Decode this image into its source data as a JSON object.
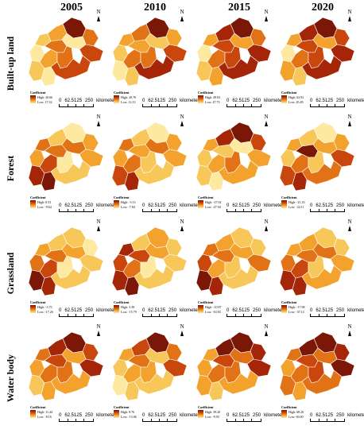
{
  "years": [
    "2005",
    "2010",
    "2015",
    "2020"
  ],
  "rows": [
    {
      "label": "Built-up land",
      "panels": [
        {
          "high": "High: 20.66",
          "low": "Low: 17.32"
        },
        {
          "high": "High: 20.70",
          "low": "Low: 12.13"
        },
        {
          "high": "High: 49.03",
          "low": "Low: 47.73"
        },
        {
          "high": "High: 63.92",
          "low": "Low: 45.49"
        }
      ]
    },
    {
      "label": "Forest",
      "panels": [
        {
          "high": "High: 8.53",
          "low": "Low: -9.64"
        },
        {
          "high": "High: -3.13",
          "low": "Low: -7.84"
        },
        {
          "high": "High: -27.02",
          "low": "Low: -27.94"
        },
        {
          "high": "High: -21.16",
          "low": "Low: -22.11"
        }
      ]
    },
    {
      "label": "Grassland",
      "panels": [
        {
          "high": "High: -3.75",
          "low": "Low: -17.26"
        },
        {
          "high": "High: 3.39",
          "low": "Low: -15.79"
        },
        {
          "high": "High: -10.87",
          "low": "Low: -63.92"
        },
        {
          "high": "High: -17.98",
          "low": "Low: -37.12"
        }
      ]
    },
    {
      "label": "Water body",
      "panels": [
        {
          "high": "High: 11.44",
          "low": "Low: -8.16"
        },
        {
          "high": "High: 8.76",
          "low": "Low: -13.06"
        },
        {
          "high": "High: 39.20",
          "low": "Low: -9.93"
        },
        {
          "high": "High: 68.20",
          "low": "Low: 66.00"
        }
      ]
    }
  ],
  "legend_title": "Coefficient",
  "north_label": "N",
  "scale": {
    "ticks": [
      "0",
      "62.5125",
      "250"
    ],
    "unit": "kilometers"
  },
  "palette": [
    "#fde9a0",
    "#f8c75a",
    "#f2a22d",
    "#e17316",
    "#c9470c",
    "#a42508",
    "#7a1706"
  ],
  "region_classes": [
    [
      [
        0,
        1,
        6,
        2,
        3,
        1,
        0,
        2,
        3,
        0,
        4,
        3,
        4
      ],
      [
        1,
        2,
        6,
        3,
        2,
        0,
        1,
        3,
        2,
        1,
        4,
        3,
        5
      ],
      [
        0,
        2,
        6,
        5,
        3,
        1,
        2,
        3,
        4,
        2,
        5,
        4,
        5
      ],
      [
        0,
        2,
        6,
        5,
        4,
        2,
        1,
        3,
        4,
        2,
        5,
        4,
        5
      ]
    ],
    [
      [
        2,
        3,
        0,
        1,
        2,
        5,
        6,
        4,
        3,
        3,
        2,
        0,
        1
      ],
      [
        2,
        3,
        0,
        1,
        2,
        4,
        5,
        3,
        2,
        3,
        2,
        1,
        1
      ],
      [
        1,
        2,
        6,
        5,
        4,
        1,
        0,
        2,
        1,
        0,
        2,
        3,
        2
      ],
      [
        1,
        2,
        0,
        1,
        2,
        4,
        5,
        3,
        6,
        2,
        4,
        1,
        3
      ]
    ],
    [
      [
        3,
        2,
        1,
        1,
        0,
        6,
        5,
        4,
        3,
        2,
        1,
        0,
        1
      ],
      [
        4,
        5,
        2,
        1,
        1,
        5,
        6,
        3,
        4,
        2,
        1,
        0,
        1
      ],
      [
        4,
        3,
        1,
        2,
        1,
        6,
        5,
        2,
        3,
        2,
        3,
        1,
        1
      ],
      [
        3,
        2,
        1,
        2,
        1,
        5,
        5,
        4,
        3,
        3,
        2,
        1,
        2
      ]
    ],
    [
      [
        2,
        3,
        6,
        5,
        4,
        1,
        2,
        3,
        4,
        2,
        5,
        3,
        2
      ],
      [
        1,
        2,
        6,
        4,
        3,
        0,
        1,
        2,
        3,
        1,
        4,
        2,
        1
      ],
      [
        2,
        2,
        6,
        6,
        5,
        2,
        1,
        3,
        4,
        3,
        5,
        3,
        2
      ],
      [
        2,
        3,
        6,
        6,
        5,
        3,
        2,
        3,
        4,
        3,
        6,
        4,
        3
      ]
    ]
  ]
}
